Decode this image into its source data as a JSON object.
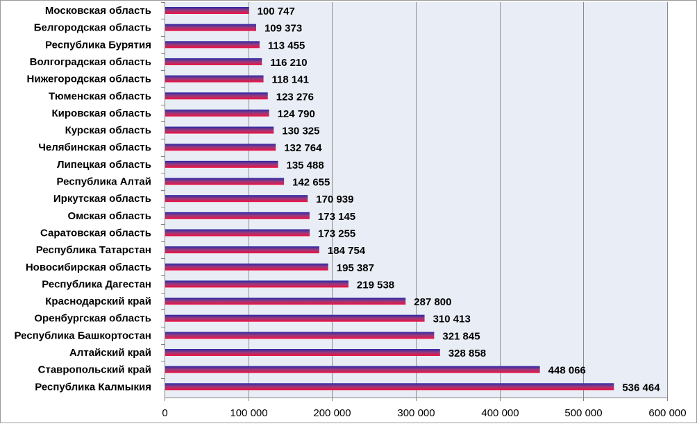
{
  "chart_data": {
    "type": "bar",
    "orientation": "horizontal",
    "categories": [
      "Московская область",
      "Белгородская область",
      "Республика Бурятия",
      "Волгоградская область",
      "Нижегородская область",
      "Тюменская область",
      "Кировская область",
      "Курская область",
      "Челябинская область",
      "Липецкая область",
      "Республика Алтай",
      "Иркутская  область",
      "Омская область",
      "Саратовская  область",
      "Республика Татарстан",
      "Новосибирская область",
      "Республика Дагестан",
      "Краснодарский край",
      "Оренбургская область",
      "Республика Башкортостан",
      "Алтайский край",
      "Ставропольский край",
      "Республика Калмыкия"
    ],
    "values": [
      100747,
      109373,
      113455,
      116210,
      118141,
      123276,
      124790,
      130325,
      132764,
      135488,
      142655,
      170939,
      173145,
      173255,
      184754,
      195387,
      219538,
      287800,
      310413,
      321845,
      328858,
      448066,
      536464
    ],
    "value_labels": [
      "100 747",
      "109 373",
      "113 455",
      "116 210",
      "118 141",
      "123 276",
      "124 790",
      "130 325",
      "132 764",
      "135 488",
      "142 655",
      "170 939",
      "173 145",
      "173 255",
      "184 754",
      "195 387",
      "219 538",
      "287 800",
      "310 413",
      "321 845",
      "328 858",
      "448 066",
      "536 464"
    ],
    "xlim": [
      0,
      600000
    ],
    "xticks": [
      0,
      100000,
      200000,
      300000,
      400000,
      500000,
      600000
    ],
    "xtick_labels": [
      "0",
      "100 000",
      "200 000",
      "300 000",
      "400 000",
      "500 000",
      "600 000"
    ],
    "title": "",
    "xlabel": "",
    "ylabel": "",
    "grid": "vertical",
    "legend": "none",
    "colors": {
      "plot_background": "#e9edf5",
      "gridline": "#8c8c8c",
      "bar_top": "#2b2ba8",
      "bar_mid": "#9a3a7c",
      "bar_bottom": "#ef1040"
    }
  }
}
